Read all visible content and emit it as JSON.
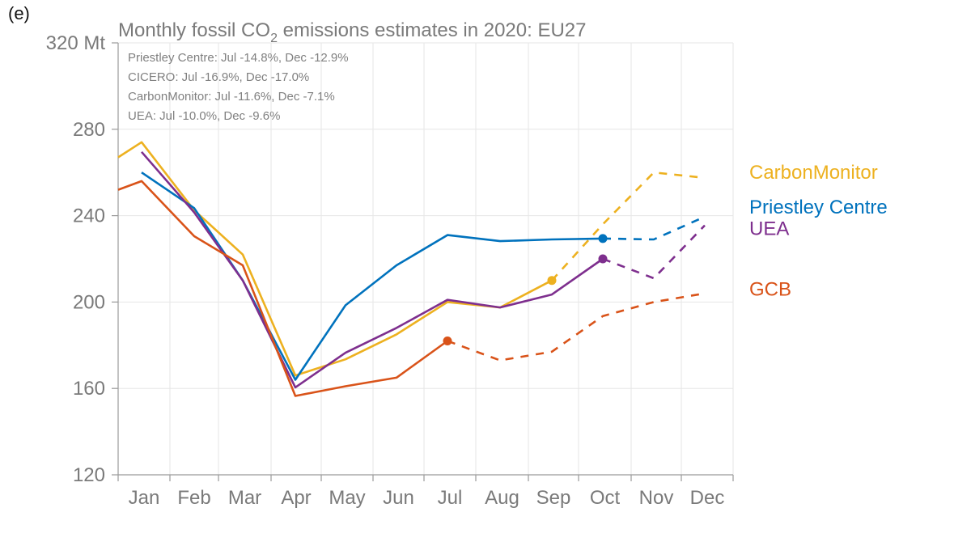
{
  "panel_label": "(e)",
  "chart_data": {
    "type": "line",
    "title_parts": [
      "Monthly fossil CO",
      "2",
      " emissions estimates in 2020: EU27"
    ],
    "title": "Monthly fossil CO2 emissions estimates in 2020: EU27",
    "xlabel": "",
    "ylabel": "",
    "categories": [
      "Jan",
      "Feb",
      "Mar",
      "Apr",
      "May",
      "Jun",
      "Jul",
      "Aug",
      "Sep",
      "Oct",
      "Nov",
      "Dec"
    ],
    "yticks": [
      120,
      160,
      200,
      240,
      280,
      320
    ],
    "ytick_labels": [
      "120",
      "160",
      "200",
      "240",
      "280",
      "320 Mt"
    ],
    "ylim": [
      120,
      320
    ],
    "grid": true,
    "annotations": [
      "Priestley Centre: Jul -14.8%, Dec -12.9%",
      "CICERO: Jul -16.9%, Dec -17.0%",
      "CarbonMonitor: Jul -11.6%, Dec -7.1%",
      "UEA: Jul -10.0%, Dec -9.6%"
    ],
    "legend_position": "right",
    "series": [
      {
        "name": "CarbonMonitor",
        "color": "#EDB120",
        "start_value": 267,
        "values": [
          274,
          242.5,
          222,
          166,
          173.5,
          185,
          200,
          197.5,
          210,
          236,
          260,
          257.5
        ],
        "last_observed_index": 8
      },
      {
        "name": "Priestley Centre",
        "color": "#0072BD",
        "values": [
          260,
          243.5,
          210,
          164,
          198.5,
          217,
          231,
          228.2,
          229,
          229.4,
          229,
          239.5
        ],
        "last_observed_index": 9
      },
      {
        "name": "UEA",
        "color": "#7E2F8E",
        "values": [
          269.5,
          241.5,
          210,
          160.5,
          176.5,
          188,
          201,
          197.5,
          203.5,
          220,
          211,
          235.5
        ],
        "last_observed_index": 9
      },
      {
        "name": "GCB",
        "color": "#D95319",
        "start_value": 252,
        "values": [
          256,
          230.5,
          217,
          156.5,
          161,
          165,
          182,
          173,
          177,
          193.5,
          200,
          204
        ],
        "last_observed_index": 6
      }
    ],
    "legend_labels": [
      {
        "name": "CarbonMonitor",
        "color": "#EDB120",
        "anchor_value": 260
      },
      {
        "name": "Priestley Centre",
        "color": "#0072BD",
        "anchor_value": 244
      },
      {
        "name": "UEA",
        "color": "#7E2F8E",
        "anchor_value": 234
      },
      {
        "name": "GCB",
        "color": "#D95319",
        "anchor_value": 206
      }
    ]
  }
}
